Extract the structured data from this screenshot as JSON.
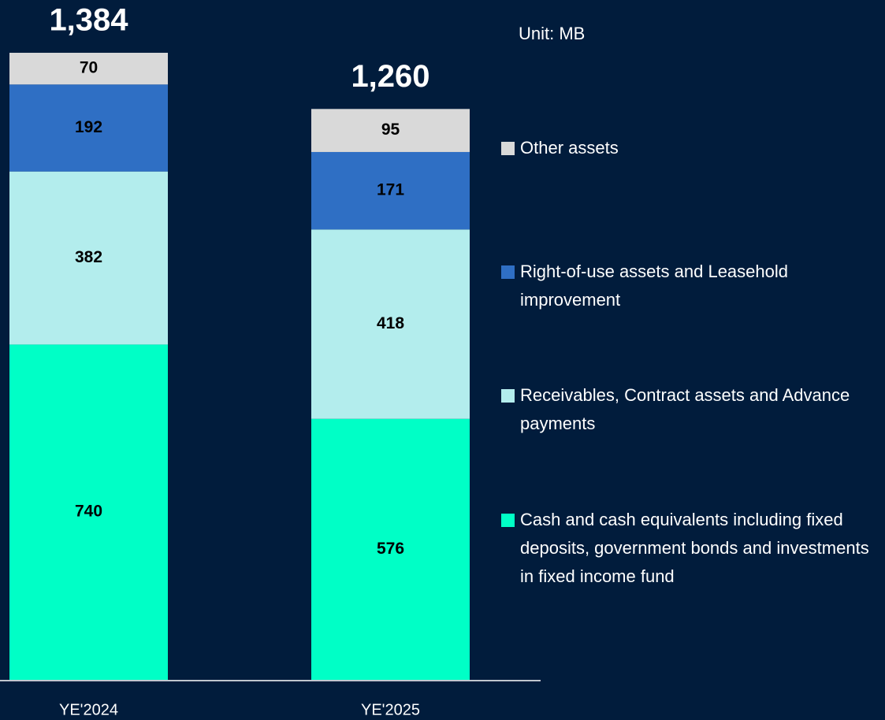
{
  "chart_data": {
    "type": "stacked_bar",
    "unit_label": "Unit: MB",
    "categories": [
      "YE'2024",
      "YE'2025"
    ],
    "series": [
      {
        "name": "Cash and cash equivalents including fixed deposits, government bonds and investments in fixed income fund",
        "color": "#00ffc6",
        "values": [
          740,
          576
        ]
      },
      {
        "name": "Receivables, Contract assets and Advance payments",
        "color": "#b3eded",
        "values": [
          382,
          418
        ]
      },
      {
        "name": "Right-of-use assets and Leasehold improvement",
        "color": "#2f6fc4",
        "values": [
          192,
          171
        ]
      },
      {
        "name": "Other assets",
        "color": "#d9d9d9",
        "values": [
          70,
          95
        ]
      }
    ],
    "totals": [
      1384,
      1260
    ],
    "total_labels": [
      "1,384",
      "1,260"
    ]
  }
}
